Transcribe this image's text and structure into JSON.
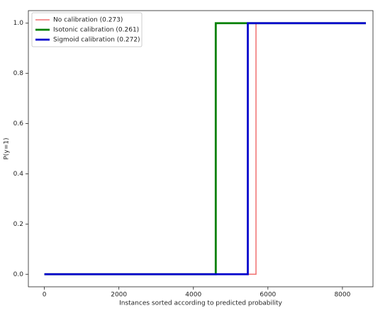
{
  "chart_data": {
    "type": "line",
    "x_label": "Instances sorted according to predicted probability",
    "y_label": "P(y=1)",
    "xlim": [
      -430,
      8820
    ],
    "ylim": [
      -0.05,
      1.05
    ],
    "xticks": [
      0,
      2000,
      4000,
      6000,
      8000
    ],
    "yticks": [
      {
        "value": 0,
        "label": "0.0"
      },
      0.2,
      0.4,
      0.6,
      0.8,
      {
        "value": 1,
        "label": "1.0"
      }
    ],
    "grid": false,
    "legend_position": "upper-left",
    "series": [
      {
        "name": "No calibration (0.273)",
        "color": "#f07070",
        "x": [
          0,
          5680,
          5680,
          8630
        ],
        "values": [
          0,
          0,
          1,
          1
        ]
      },
      {
        "name": "Isotonic calibration (0.261)",
        "color": "#008000",
        "x": [
          0,
          4600,
          4600,
          8630
        ],
        "values": [
          0,
          0,
          1,
          1
        ]
      },
      {
        "name": "Sigmoid calibration (0.272)",
        "color": "#0000cc",
        "x": [
          0,
          5460,
          5460,
          8630
        ],
        "values": [
          0,
          0,
          1,
          1
        ]
      }
    ]
  }
}
